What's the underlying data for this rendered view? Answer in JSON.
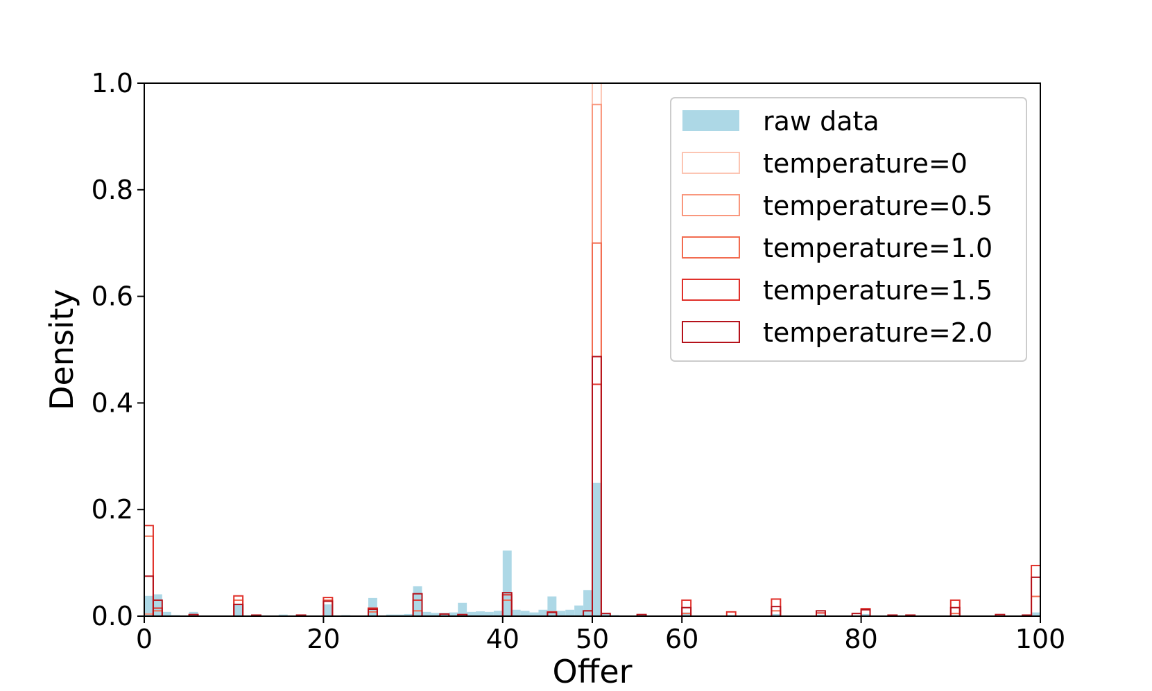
{
  "chart_data": {
    "type": "histogram",
    "xlabel": "Offer",
    "ylabel": "Density",
    "xlim": [
      0,
      100
    ],
    "ylim": [
      0,
      1.0
    ],
    "bin_width": 1,
    "xticks": [
      0,
      20,
      40,
      50,
      60,
      80,
      100
    ],
    "xtick_labels": [
      "0",
      "20",
      "40",
      "50",
      "60",
      "80",
      "100"
    ],
    "yticks": [
      0.0,
      0.2,
      0.4,
      0.6,
      0.8,
      1.0
    ],
    "ytick_labels": [
      "0.0",
      "0.2",
      "0.4",
      "0.6",
      "0.8",
      "1.0"
    ],
    "grid": false,
    "legend_position": "upper right",
    "series": [
      {
        "name": "raw data",
        "style": "filled",
        "color": "#add8e6",
        "bars": [
          {
            "x": 0,
            "y": 0.038
          },
          {
            "x": 1,
            "y": 0.041
          },
          {
            "x": 2,
            "y": 0.008
          },
          {
            "x": 3,
            "y": 0.002
          },
          {
            "x": 5,
            "y": 0.008
          },
          {
            "x": 10,
            "y": 0.022
          },
          {
            "x": 12,
            "y": 0.002
          },
          {
            "x": 15,
            "y": 0.003
          },
          {
            "x": 20,
            "y": 0.022
          },
          {
            "x": 22,
            "y": 0.002
          },
          {
            "x": 25,
            "y": 0.034
          },
          {
            "x": 27,
            "y": 0.003
          },
          {
            "x": 28,
            "y": 0.003
          },
          {
            "x": 29,
            "y": 0.004
          },
          {
            "x": 30,
            "y": 0.056
          },
          {
            "x": 31,
            "y": 0.008
          },
          {
            "x": 32,
            "y": 0.006
          },
          {
            "x": 33,
            "y": 0.006
          },
          {
            "x": 34,
            "y": 0.007
          },
          {
            "x": 35,
            "y": 0.025
          },
          {
            "x": 36,
            "y": 0.008
          },
          {
            "x": 37,
            "y": 0.009
          },
          {
            "x": 38,
            "y": 0.008
          },
          {
            "x": 39,
            "y": 0.01
          },
          {
            "x": 40,
            "y": 0.123
          },
          {
            "x": 41,
            "y": 0.012
          },
          {
            "x": 42,
            "y": 0.01
          },
          {
            "x": 43,
            "y": 0.007
          },
          {
            "x": 44,
            "y": 0.012
          },
          {
            "x": 45,
            "y": 0.037
          },
          {
            "x": 46,
            "y": 0.01
          },
          {
            "x": 47,
            "y": 0.012
          },
          {
            "x": 48,
            "y": 0.02
          },
          {
            "x": 49,
            "y": 0.049
          },
          {
            "x": 50,
            "y": 0.25
          },
          {
            "x": 51,
            "y": 0.006
          },
          {
            "x": 52,
            "y": 0.002
          },
          {
            "x": 55,
            "y": 0.003
          },
          {
            "x": 60,
            "y": 0.007
          },
          {
            "x": 65,
            "y": 0.002
          },
          {
            "x": 70,
            "y": 0.004
          },
          {
            "x": 75,
            "y": 0.003
          },
          {
            "x": 80,
            "y": 0.004
          },
          {
            "x": 90,
            "y": 0.002
          },
          {
            "x": 99,
            "y": 0.007
          }
        ]
      },
      {
        "name": "temperature=0",
        "style": "step",
        "color": "#fcc5b3",
        "bars": [
          {
            "x": 50,
            "y": 1.0
          }
        ]
      },
      {
        "name": "temperature=0.5",
        "style": "step",
        "color": "#f9977d",
        "bars": [
          {
            "x": 50,
            "y": 0.96
          },
          {
            "x": 0,
            "y": 0.004
          }
        ]
      },
      {
        "name": "temperature=1.0",
        "style": "step",
        "color": "#f26b4f",
        "bars": [
          {
            "x": 0,
            "y": 0.15
          },
          {
            "x": 1,
            "y": 0.01
          },
          {
            "x": 10,
            "y": 0.03
          },
          {
            "x": 20,
            "y": 0.03
          },
          {
            "x": 25,
            "y": 0.008
          },
          {
            "x": 30,
            "y": 0.01
          },
          {
            "x": 40,
            "y": 0.03
          },
          {
            "x": 50,
            "y": 0.7
          },
          {
            "x": 60,
            "y": 0.005
          },
          {
            "x": 70,
            "y": 0.01
          },
          {
            "x": 90,
            "y": 0.005
          },
          {
            "x": 99,
            "y": 0.037
          }
        ]
      },
      {
        "name": "temperature=1.5",
        "style": "step",
        "color": "#e0302a",
        "bars": [
          {
            "x": 0,
            "y": 0.17
          },
          {
            "x": 1,
            "y": 0.015
          },
          {
            "x": 10,
            "y": 0.038
          },
          {
            "x": 20,
            "y": 0.035
          },
          {
            "x": 25,
            "y": 0.015
          },
          {
            "x": 30,
            "y": 0.03
          },
          {
            "x": 40,
            "y": 0.04
          },
          {
            "x": 45,
            "y": 0.008
          },
          {
            "x": 50,
            "y": 0.435
          },
          {
            "x": 60,
            "y": 0.03
          },
          {
            "x": 65,
            "y": 0.008
          },
          {
            "x": 70,
            "y": 0.032
          },
          {
            "x": 75,
            "y": 0.006
          },
          {
            "x": 80,
            "y": 0.014
          },
          {
            "x": 90,
            "y": 0.03
          },
          {
            "x": 99,
            "y": 0.095
          }
        ]
      },
      {
        "name": "temperature=2.0",
        "style": "step",
        "color": "#b5121b",
        "bars": [
          {
            "x": 0,
            "y": 0.075
          },
          {
            "x": 1,
            "y": 0.03
          },
          {
            "x": 5,
            "y": 0.003
          },
          {
            "x": 10,
            "y": 0.022
          },
          {
            "x": 12,
            "y": 0.002
          },
          {
            "x": 17,
            "y": 0.002
          },
          {
            "x": 20,
            "y": 0.028
          },
          {
            "x": 25,
            "y": 0.013
          },
          {
            "x": 30,
            "y": 0.042
          },
          {
            "x": 33,
            "y": 0.004
          },
          {
            "x": 35,
            "y": 0.003
          },
          {
            "x": 40,
            "y": 0.044
          },
          {
            "x": 45,
            "y": 0.007
          },
          {
            "x": 49,
            "y": 0.01
          },
          {
            "x": 50,
            "y": 0.487
          },
          {
            "x": 51,
            "y": 0.005
          },
          {
            "x": 55,
            "y": 0.003
          },
          {
            "x": 60,
            "y": 0.016
          },
          {
            "x": 70,
            "y": 0.018
          },
          {
            "x": 75,
            "y": 0.01
          },
          {
            "x": 79,
            "y": 0.005
          },
          {
            "x": 80,
            "y": 0.012
          },
          {
            "x": 83,
            "y": 0.002
          },
          {
            "x": 85,
            "y": 0.002
          },
          {
            "x": 90,
            "y": 0.016
          },
          {
            "x": 95,
            "y": 0.003
          },
          {
            "x": 98,
            "y": 0.002
          },
          {
            "x": 99,
            "y": 0.073
          }
        ]
      }
    ]
  }
}
